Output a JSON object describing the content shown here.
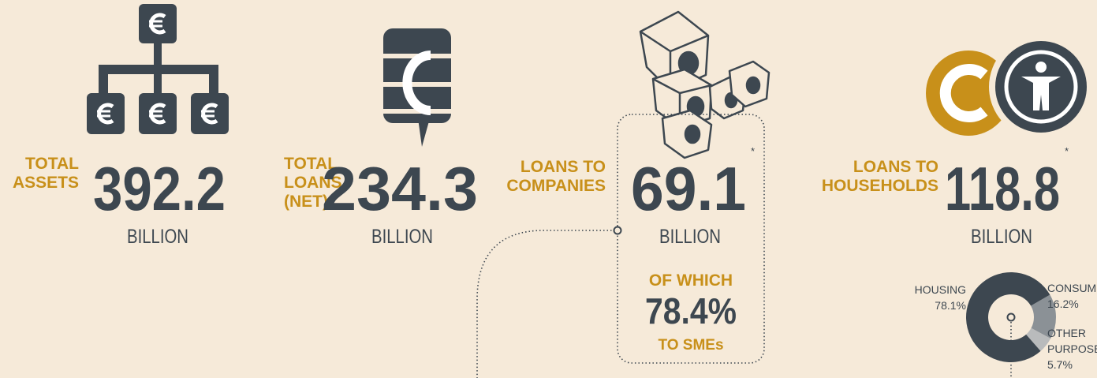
{
  "stats": [
    {
      "label_lines": [
        "TOTAL",
        "ASSETS"
      ],
      "value": "392.2",
      "unit": "BILLION"
    },
    {
      "label_lines": [
        "TOTAL",
        "LOANS",
        "(NET)"
      ],
      "value": "234.3",
      "unit": "BILLION"
    },
    {
      "label_lines": [
        "LOANS TO",
        "COMPANIES"
      ],
      "value": "69.1",
      "asterisk": "*",
      "unit": "BILLION"
    },
    {
      "label_lines": [
        "LOANS TO",
        "HOUSEHOLDS"
      ],
      "value": "118.8",
      "asterisk": "*",
      "unit": "BILLION"
    }
  ],
  "sme": {
    "prefix": "OF WHICH",
    "value": "78.4%",
    "suffix": "TO SMEs"
  },
  "household_breakdown": {
    "segments": [
      {
        "name_lines": [
          "CONSUMER"
        ],
        "value": 16.2,
        "value_label": "16.2%",
        "color": "#8b9196"
      },
      {
        "name_lines": [
          "OTHER",
          "PURPOSES"
        ],
        "value": 5.7,
        "value_label": "5.7%",
        "color": "#b9bbbc"
      },
      {
        "name_lines": [
          "HOUSING"
        ],
        "value": 78.1,
        "value_label": "78.1%",
        "color": "#3d4750"
      }
    ]
  }
}
